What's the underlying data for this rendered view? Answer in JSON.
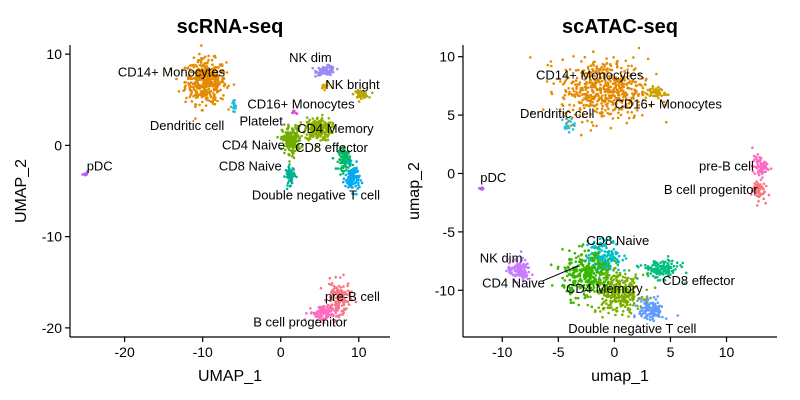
{
  "chart_data": [
    {
      "type": "scatter",
      "title": "scRNA-seq",
      "xlabel": "UMAP_1",
      "ylabel": "UMAP_2",
      "xlim": [
        -27,
        14
      ],
      "ylim": [
        -21,
        11
      ],
      "xticks": [
        -20,
        -10,
        0,
        10
      ],
      "yticks": [
        -20,
        -10,
        0,
        10
      ],
      "grid": false,
      "legend": "none",
      "clusters": [
        {
          "label": "CD14+ Monocytes",
          "color": "#E58A00",
          "cx": -9.6,
          "cy": 7.0,
          "rx": 2.6,
          "ry": 2.4,
          "n": 420,
          "label_x": -14,
          "label_y": 8,
          "label_anchor": "middle"
        },
        {
          "label": "NK dim",
          "color": "#9B8AF2",
          "cx": 5.8,
          "cy": 8.2,
          "rx": 1.2,
          "ry": 0.5,
          "n": 90,
          "label_x": 3.8,
          "label_y": 9.6,
          "label_anchor": "middle"
        },
        {
          "label": "NK bright",
          "color": "#BBA400",
          "cx": 10.3,
          "cy": 5.6,
          "rx": 0.9,
          "ry": 0.4,
          "n": 50,
          "label_x": 9.2,
          "label_y": 6.6,
          "label_anchor": "middle"
        },
        {
          "label": "CD16+ Monocytes",
          "color": "#D6A900",
          "cx": 5.5,
          "cy": 6.5,
          "rx": 0.4,
          "ry": 0.4,
          "n": 15,
          "label_x": 2.6,
          "label_y": 4.5,
          "label_anchor": "middle"
        },
        {
          "label": "Dendritic cell",
          "color": "#29BBDA",
          "cx": -6.0,
          "cy": 4.2,
          "rx": 0.35,
          "ry": 0.9,
          "n": 18,
          "label_x": -12,
          "label_y": 2.1,
          "label_anchor": "middle"
        },
        {
          "label": "Platelet",
          "color": "#E64DD2",
          "cx": 1.8,
          "cy": 3.6,
          "rx": 0.3,
          "ry": 0.3,
          "n": 8,
          "label_x": -2.5,
          "label_y": 2.6,
          "label_anchor": "middle"
        },
        {
          "label": "CD4 Memory",
          "color": "#8DB100",
          "cx": 4.8,
          "cy": 1.8,
          "rx": 1.7,
          "ry": 1.3,
          "n": 220,
          "label_x": 7.0,
          "label_y": 1.8,
          "label_anchor": "middle"
        },
        {
          "label": "CD4 Naive",
          "color": "#72AD00",
          "cx": 1.4,
          "cy": 0.6,
          "rx": 1.2,
          "ry": 1.5,
          "n": 200,
          "label_x": -3.5,
          "label_y": 0.0,
          "label_anchor": "middle"
        },
        {
          "label": "CD8 effector",
          "color": "#00B861",
          "cx": 8.2,
          "cy": -1.5,
          "rx": 0.8,
          "ry": 1.2,
          "n": 90,
          "label_x": 6.5,
          "label_y": -0.3,
          "label_anchor": "middle"
        },
        {
          "label": "CD8 Naive",
          "color": "#00B294",
          "cx": 1.2,
          "cy": -3.3,
          "rx": 0.6,
          "ry": 1.0,
          "n": 60,
          "label_x": -3.9,
          "label_y": -2.3,
          "label_anchor": "middle"
        },
        {
          "label": "Double negative T cell",
          "color": "#06A9F0",
          "cx": 9.2,
          "cy": -3.6,
          "rx": 0.9,
          "ry": 1.4,
          "n": 110,
          "label_x": 4.5,
          "label_y": -5.5,
          "label_anchor": "middle"
        },
        {
          "label": "pDC",
          "color": "#B262F0",
          "cx": -25.0,
          "cy": -3.2,
          "rx": 0.3,
          "ry": 0.3,
          "n": 8,
          "label_x": -23.2,
          "label_y": -2.3,
          "label_anchor": "middle"
        },
        {
          "label": "pre-B cell",
          "color": "#F8767D",
          "cx": 7.4,
          "cy": -16.8,
          "rx": 1.5,
          "ry": 1.8,
          "n": 140,
          "label_x": 9.2,
          "label_y": -16.6,
          "label_anchor": "middle"
        },
        {
          "label": "B cell progenitor",
          "color": "#FF6AC1",
          "cx": 5.4,
          "cy": -18.4,
          "rx": 1.8,
          "ry": 0.9,
          "n": 90,
          "label_x": 2.5,
          "label_y": -19.4,
          "label_anchor": "middle"
        }
      ]
    },
    {
      "type": "scatter",
      "title": "scATAC-seq",
      "xlabel": "umap_1",
      "ylabel": "umap_2",
      "xlim": [
        -13.5,
        14.5
      ],
      "ylim": [
        -14,
        11
      ],
      "xticks": [
        -10,
        -5,
        0,
        5,
        10
      ],
      "yticks": [
        -10,
        -5,
        0,
        5,
        10
      ],
      "grid": false,
      "legend": "none",
      "clusters": [
        {
          "label": "CD14+ Monocytes",
          "color": "#E58A00",
          "cx": -0.9,
          "cy": 7.2,
          "rx": 3.9,
          "ry": 2.6,
          "n": 520,
          "label_x": -2.2,
          "label_y": 8.4,
          "label_anchor": "middle"
        },
        {
          "label": "CD16+ Monocytes",
          "color": "#C9A500",
          "cx": 3.7,
          "cy": 6.9,
          "rx": 0.9,
          "ry": 0.5,
          "n": 40,
          "label_x": 4.8,
          "label_y": 5.9,
          "label_anchor": "middle"
        },
        {
          "label": "Dendritic cell",
          "color": "#29BBDA",
          "cx": -4.1,
          "cy": 4.2,
          "rx": 0.6,
          "ry": 0.6,
          "n": 20,
          "label_x": -5.1,
          "label_y": 5.1,
          "label_anchor": "middle"
        },
        {
          "label": "pDC",
          "color": "#B262F0",
          "cx": -11.9,
          "cy": -1.3,
          "rx": 0.2,
          "ry": 0.2,
          "n": 6,
          "label_x": -10.8,
          "label_y": -0.4,
          "label_anchor": "middle"
        },
        {
          "label": "pre-B cell",
          "color": "#FF6AC1",
          "cx": 13.0,
          "cy": 0.6,
          "rx": 0.7,
          "ry": 0.9,
          "n": 70,
          "label_x": 10.0,
          "label_y": 0.6,
          "label_anchor": "middle"
        },
        {
          "label": "B cell progenitor",
          "color": "#F8767D",
          "cx": 12.8,
          "cy": -1.4,
          "rx": 0.6,
          "ry": 0.9,
          "n": 60,
          "label_x": 8.6,
          "label_y": -1.4,
          "label_anchor": "middle"
        },
        {
          "label": "NK dim",
          "color": "#C77CFF",
          "cx": -8.5,
          "cy": -8.3,
          "rx": 1.0,
          "ry": 0.9,
          "n": 110,
          "label_x": -10.1,
          "label_y": -7.3,
          "label_anchor": "middle"
        },
        {
          "label": "CD8 Naive",
          "color": "#00BFC4",
          "cx": -0.9,
          "cy": -7.1,
          "rx": 1.5,
          "ry": 1.4,
          "n": 170,
          "label_x": 0.3,
          "label_y": -5.8,
          "label_anchor": "middle"
        },
        {
          "label": "CD4 Naive",
          "color": "#39B600",
          "cx": -2.4,
          "cy": -8.7,
          "rx": 2.2,
          "ry": 2.0,
          "n": 320,
          "label_x": -9.0,
          "label_y": -9.4,
          "label_anchor": "middle"
        },
        {
          "label": "CD4 Memory",
          "color": "#7CAE00",
          "cx": 0.5,
          "cy": -10.3,
          "rx": 2.1,
          "ry": 1.7,
          "n": 280,
          "label_x": -0.9,
          "label_y": -9.9,
          "label_anchor": "middle"
        },
        {
          "label": "CD8 effector",
          "color": "#00BF7D",
          "cx": 4.1,
          "cy": -8.2,
          "rx": 1.7,
          "ry": 0.8,
          "n": 130,
          "label_x": 7.5,
          "label_y": -9.2,
          "label_anchor": "middle"
        },
        {
          "label": "Double negative T cell",
          "color": "#619CFF",
          "cx": 3.3,
          "cy": -11.7,
          "rx": 1.1,
          "ry": 1.0,
          "n": 120,
          "label_x": 1.6,
          "label_y": -13.3,
          "label_anchor": "middle"
        }
      ]
    }
  ]
}
